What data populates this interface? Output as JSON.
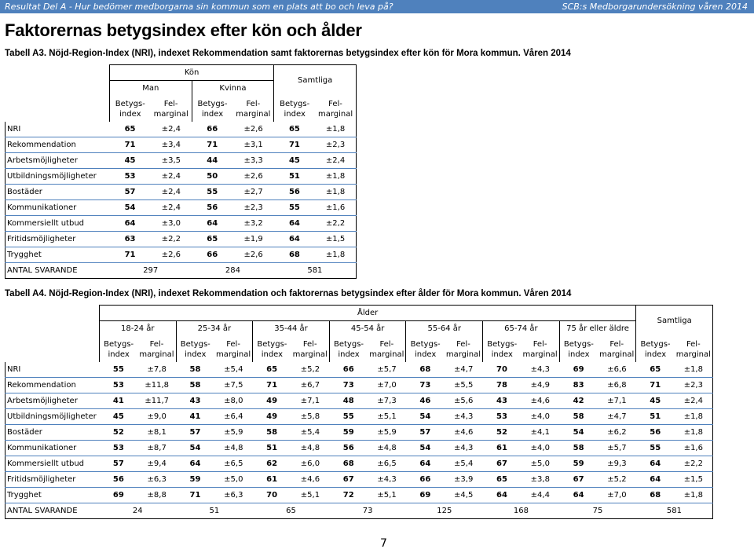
{
  "header": {
    "left": "Resultat Del A - Hur bedömer medborgarna sin kommun som en plats att bo och leva på?",
    "right": "SCB:s Medborgarundersökning våren 2014"
  },
  "heading": "Faktorernas betygsindex efter kön och ålder",
  "tableA3": {
    "caption": "Tabell A3. Nöjd-Region-Index (NRI), indexet Rekommendation samt faktorernas betygsindex efter kön för Mora kommun. Våren 2014",
    "group_header": "Kön",
    "groups": [
      "Man",
      "Kvinna"
    ],
    "total_header": "Samtliga",
    "col_index": "Betygs- index",
    "col_margin": "Fel- marginal",
    "rows": [
      {
        "label": "NRI",
        "values": [
          "65",
          "±2,4",
          "66",
          "±2,6",
          "65",
          "±1,8"
        ]
      },
      {
        "label": "Rekommendation",
        "values": [
          "71",
          "±3,4",
          "71",
          "±3,1",
          "71",
          "±2,3"
        ]
      },
      {
        "label": "Arbetsmöjligheter",
        "values": [
          "45",
          "±3,5",
          "44",
          "±3,3",
          "45",
          "±2,4"
        ]
      },
      {
        "label": "Utbildningsmöjligheter",
        "values": [
          "53",
          "±2,4",
          "50",
          "±2,6",
          "51",
          "±1,8"
        ]
      },
      {
        "label": "Bostäder",
        "values": [
          "57",
          "±2,4",
          "55",
          "±2,7",
          "56",
          "±1,8"
        ]
      },
      {
        "label": "Kommunikationer",
        "values": [
          "54",
          "±2,4",
          "56",
          "±2,3",
          "55",
          "±1,6"
        ]
      },
      {
        "label": "Kommersiellt utbud",
        "values": [
          "64",
          "±3,0",
          "64",
          "±3,2",
          "64",
          "±2,2"
        ]
      },
      {
        "label": "Fritidsmöjligheter",
        "values": [
          "63",
          "±2,2",
          "65",
          "±1,9",
          "64",
          "±1,5"
        ]
      },
      {
        "label": "Trygghet",
        "values": [
          "71",
          "±2,6",
          "66",
          "±2,6",
          "68",
          "±1,8"
        ]
      }
    ],
    "respondents": {
      "label": "ANTAL SVARANDE",
      "values": [
        "297",
        "284",
        "581"
      ]
    }
  },
  "tableA4": {
    "caption": "Tabell A4. Nöjd-Region-Index (NRI), indexet Rekommendation och faktorernas betygsindex efter ålder för Mora kommun. Våren 2014",
    "group_header": "Ålder",
    "groups": [
      "18-24 år",
      "25-34 år",
      "35-44 år",
      "45-54 år",
      "55-64 år",
      "65-74 år",
      "75 år eller äldre"
    ],
    "total_header": "Samtliga",
    "col_index": "Betygs- index",
    "col_margin": "Fel- marginal",
    "rows": [
      {
        "label": "NRI",
        "values": [
          "55",
          "±7,8",
          "58",
          "±5,4",
          "65",
          "±5,2",
          "66",
          "±5,7",
          "68",
          "±4,7",
          "70",
          "±4,3",
          "69",
          "±6,6",
          "65",
          "±1,8"
        ]
      },
      {
        "label": "Rekommendation",
        "values": [
          "53",
          "±11,8",
          "58",
          "±7,5",
          "71",
          "±6,7",
          "73",
          "±7,0",
          "73",
          "±5,5",
          "78",
          "±4,9",
          "83",
          "±6,8",
          "71",
          "±2,3"
        ]
      },
      {
        "label": "Arbetsmöjligheter",
        "values": [
          "41",
          "±11,7",
          "43",
          "±8,0",
          "49",
          "±7,1",
          "48",
          "±7,3",
          "46",
          "±5,6",
          "43",
          "±4,6",
          "42",
          "±7,1",
          "45",
          "±2,4"
        ]
      },
      {
        "label": "Utbildningsmöjligheter",
        "values": [
          "45",
          "±9,0",
          "41",
          "±6,4",
          "49",
          "±5,8",
          "55",
          "±5,1",
          "54",
          "±4,3",
          "53",
          "±4,0",
          "58",
          "±4,7",
          "51",
          "±1,8"
        ]
      },
      {
        "label": "Bostäder",
        "values": [
          "52",
          "±8,1",
          "57",
          "±5,9",
          "58",
          "±5,4",
          "59",
          "±5,9",
          "57",
          "±4,6",
          "52",
          "±4,1",
          "54",
          "±6,2",
          "56",
          "±1,8"
        ]
      },
      {
        "label": "Kommunikationer",
        "values": [
          "53",
          "±8,7",
          "54",
          "±4,8",
          "51",
          "±4,8",
          "56",
          "±4,8",
          "54",
          "±4,3",
          "61",
          "±4,0",
          "58",
          "±5,7",
          "55",
          "±1,6"
        ]
      },
      {
        "label": "Kommersiellt utbud",
        "values": [
          "57",
          "±9,4",
          "64",
          "±6,5",
          "62",
          "±6,0",
          "68",
          "±6,5",
          "64",
          "±5,4",
          "67",
          "±5,0",
          "59",
          "±9,3",
          "64",
          "±2,2"
        ]
      },
      {
        "label": "Fritidsmöjligheter",
        "values": [
          "56",
          "±6,3",
          "59",
          "±5,0",
          "61",
          "±4,6",
          "67",
          "±4,3",
          "66",
          "±3,9",
          "65",
          "±3,8",
          "67",
          "±5,2",
          "64",
          "±1,5"
        ]
      },
      {
        "label": "Trygghet",
        "values": [
          "69",
          "±8,8",
          "71",
          "±6,3",
          "70",
          "±5,1",
          "72",
          "±5,1",
          "69",
          "±4,5",
          "64",
          "±4,4",
          "64",
          "±7,0",
          "68",
          "±1,8"
        ]
      }
    ],
    "respondents": {
      "label": "ANTAL SVARANDE",
      "values": [
        "24",
        "51",
        "65",
        "73",
        "125",
        "168",
        "75",
        "581"
      ]
    }
  },
  "page_number": "7"
}
